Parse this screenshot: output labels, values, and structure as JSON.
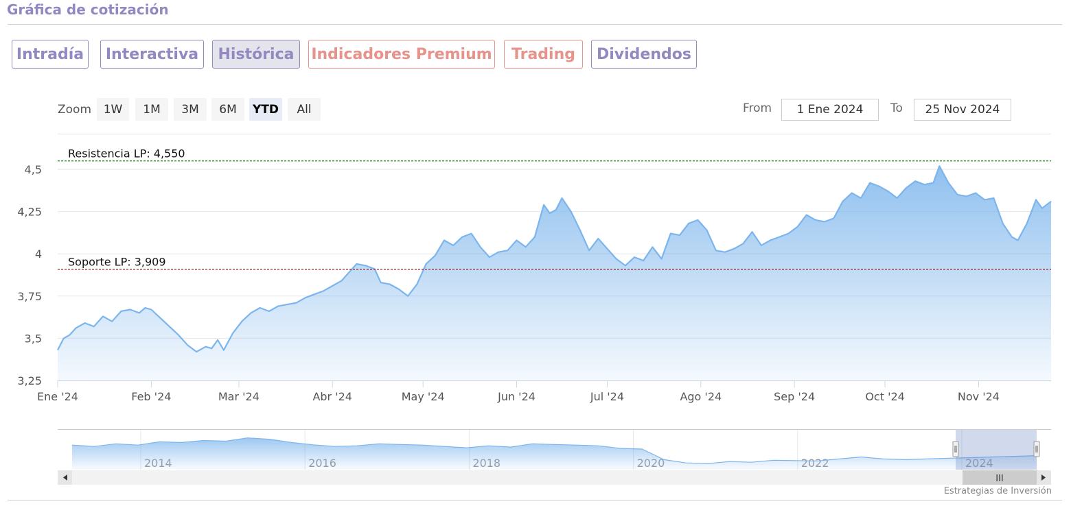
{
  "header": {
    "title": "Gráfica de cotización"
  },
  "tabs": [
    {
      "label": "Intradía",
      "kind": "normal"
    },
    {
      "label": "Interactiva",
      "kind": "normal"
    },
    {
      "label": "Histórica",
      "kind": "active"
    },
    {
      "label": "Indicadores Premium",
      "kind": "premium"
    },
    {
      "label": "Trading",
      "kind": "premium"
    },
    {
      "label": "Dividendos",
      "kind": "normal"
    }
  ],
  "range_selector": {
    "zoom_label": "Zoom",
    "buttons": [
      "1W",
      "1M",
      "3M",
      "6M",
      "YTD",
      "All"
    ],
    "selected": "YTD",
    "from_label": "From",
    "from_value": "1 Ene 2024",
    "to_label": "To",
    "to_value": "25 Nov 2024"
  },
  "colors": {
    "series": "#7cb5ec",
    "resistance": "#2e8b2e",
    "support": "#8b1a1a",
    "tab_normal": "#9488c0",
    "tab_premium": "#e5938b"
  },
  "chart_data": {
    "type": "area",
    "ylim": [
      3.25,
      4.55
    ],
    "y_ticks": [
      {
        "value": 3.25,
        "label": "3,25"
      },
      {
        "value": 3.5,
        "label": "3,5"
      },
      {
        "value": 3.75,
        "label": "3,75"
      },
      {
        "value": 4.0,
        "label": "4"
      },
      {
        "value": 4.25,
        "label": "4,25"
      },
      {
        "value": 4.5,
        "label": "4,5"
      }
    ],
    "x_ticks": [
      {
        "date": "2024-01-01",
        "label": "Ene '24"
      },
      {
        "date": "2024-02-01",
        "label": "Feb '24"
      },
      {
        "date": "2024-03-01",
        "label": "Mar '24"
      },
      {
        "date": "2024-04-01",
        "label": "Abr '24"
      },
      {
        "date": "2024-05-01",
        "label": "May '24"
      },
      {
        "date": "2024-06-01",
        "label": "Jun '24"
      },
      {
        "date": "2024-07-01",
        "label": "Jul '24"
      },
      {
        "date": "2024-08-01",
        "label": "Ago '24"
      },
      {
        "date": "2024-09-01",
        "label": "Sep '24"
      },
      {
        "date": "2024-10-01",
        "label": "Oct '24"
      },
      {
        "date": "2024-11-01",
        "label": "Nov '24"
      }
    ],
    "x_range": [
      "2024-01-01",
      "2024-11-25"
    ],
    "reference_lines": [
      {
        "label": "Resistencia LP: 4,550",
        "value": 4.55,
        "style": "dashed",
        "color_key": "resistance"
      },
      {
        "label": "Soporte LP: 3,909",
        "value": 3.909,
        "style": "dashed",
        "color_key": "support"
      }
    ],
    "series": [
      {
        "points": [
          [
            "2024-01-01",
            3.43
          ],
          [
            "2024-01-03",
            3.5
          ],
          [
            "2024-01-05",
            3.52
          ],
          [
            "2024-01-07",
            3.56
          ],
          [
            "2024-01-10",
            3.59
          ],
          [
            "2024-01-13",
            3.57
          ],
          [
            "2024-01-16",
            3.63
          ],
          [
            "2024-01-19",
            3.6
          ],
          [
            "2024-01-22",
            3.66
          ],
          [
            "2024-01-25",
            3.67
          ],
          [
            "2024-01-28",
            3.65
          ],
          [
            "2024-01-30",
            3.68
          ],
          [
            "2024-02-01",
            3.67
          ],
          [
            "2024-02-04",
            3.62
          ],
          [
            "2024-02-07",
            3.57
          ],
          [
            "2024-02-10",
            3.52
          ],
          [
            "2024-02-13",
            3.46
          ],
          [
            "2024-02-16",
            3.42
          ],
          [
            "2024-02-19",
            3.45
          ],
          [
            "2024-02-21",
            3.44
          ],
          [
            "2024-02-23",
            3.49
          ],
          [
            "2024-02-25",
            3.43
          ],
          [
            "2024-02-28",
            3.53
          ],
          [
            "2024-03-02",
            3.6
          ],
          [
            "2024-03-05",
            3.65
          ],
          [
            "2024-03-08",
            3.68
          ],
          [
            "2024-03-11",
            3.66
          ],
          [
            "2024-03-14",
            3.69
          ],
          [
            "2024-03-17",
            3.7
          ],
          [
            "2024-03-20",
            3.71
          ],
          [
            "2024-03-23",
            3.74
          ],
          [
            "2024-03-26",
            3.76
          ],
          [
            "2024-03-29",
            3.78
          ],
          [
            "2024-04-01",
            3.81
          ],
          [
            "2024-04-04",
            3.84
          ],
          [
            "2024-04-07",
            3.9
          ],
          [
            "2024-04-09",
            3.94
          ],
          [
            "2024-04-12",
            3.93
          ],
          [
            "2024-04-15",
            3.91
          ],
          [
            "2024-04-17",
            3.83
          ],
          [
            "2024-04-20",
            3.82
          ],
          [
            "2024-04-23",
            3.79
          ],
          [
            "2024-04-26",
            3.75
          ],
          [
            "2024-04-29",
            3.82
          ],
          [
            "2024-05-02",
            3.94
          ],
          [
            "2024-05-05",
            3.99
          ],
          [
            "2024-05-08",
            4.08
          ],
          [
            "2024-05-11",
            4.05
          ],
          [
            "2024-05-14",
            4.1
          ],
          [
            "2024-05-17",
            4.12
          ],
          [
            "2024-05-20",
            4.04
          ],
          [
            "2024-05-23",
            3.98
          ],
          [
            "2024-05-26",
            4.01
          ],
          [
            "2024-05-29",
            4.02
          ],
          [
            "2024-06-01",
            4.08
          ],
          [
            "2024-06-04",
            4.04
          ],
          [
            "2024-06-07",
            4.1
          ],
          [
            "2024-06-10",
            4.29
          ],
          [
            "2024-06-12",
            4.24
          ],
          [
            "2024-06-14",
            4.26
          ],
          [
            "2024-06-16",
            4.33
          ],
          [
            "2024-06-19",
            4.25
          ],
          [
            "2024-06-22",
            4.14
          ],
          [
            "2024-06-25",
            4.02
          ],
          [
            "2024-06-28",
            4.09
          ],
          [
            "2024-07-01",
            4.03
          ],
          [
            "2024-07-04",
            3.97
          ],
          [
            "2024-07-07",
            3.93
          ],
          [
            "2024-07-10",
            3.98
          ],
          [
            "2024-07-13",
            3.96
          ],
          [
            "2024-07-16",
            4.04
          ],
          [
            "2024-07-19",
            3.97
          ],
          [
            "2024-07-22",
            4.12
          ],
          [
            "2024-07-25",
            4.11
          ],
          [
            "2024-07-28",
            4.18
          ],
          [
            "2024-07-31",
            4.2
          ],
          [
            "2024-08-03",
            4.14
          ],
          [
            "2024-08-06",
            4.02
          ],
          [
            "2024-08-09",
            4.01
          ],
          [
            "2024-08-12",
            4.03
          ],
          [
            "2024-08-15",
            4.06
          ],
          [
            "2024-08-18",
            4.13
          ],
          [
            "2024-08-21",
            4.05
          ],
          [
            "2024-08-24",
            4.08
          ],
          [
            "2024-08-27",
            4.1
          ],
          [
            "2024-08-30",
            4.12
          ],
          [
            "2024-09-02",
            4.16
          ],
          [
            "2024-09-05",
            4.23
          ],
          [
            "2024-09-08",
            4.2
          ],
          [
            "2024-09-11",
            4.19
          ],
          [
            "2024-09-14",
            4.21
          ],
          [
            "2024-09-17",
            4.31
          ],
          [
            "2024-09-20",
            4.36
          ],
          [
            "2024-09-23",
            4.33
          ],
          [
            "2024-09-26",
            4.42
          ],
          [
            "2024-09-29",
            4.4
          ],
          [
            "2024-10-02",
            4.37
          ],
          [
            "2024-10-05",
            4.33
          ],
          [
            "2024-10-08",
            4.39
          ],
          [
            "2024-10-11",
            4.43
          ],
          [
            "2024-10-14",
            4.41
          ],
          [
            "2024-10-17",
            4.42
          ],
          [
            "2024-10-19",
            4.52
          ],
          [
            "2024-10-22",
            4.42
          ],
          [
            "2024-10-25",
            4.35
          ],
          [
            "2024-10-28",
            4.34
          ],
          [
            "2024-10-31",
            4.36
          ],
          [
            "2024-11-03",
            4.32
          ],
          [
            "2024-11-06",
            4.33
          ],
          [
            "2024-11-09",
            4.18
          ],
          [
            "2024-11-12",
            4.1
          ],
          [
            "2024-11-14",
            4.08
          ],
          [
            "2024-11-17",
            4.18
          ],
          [
            "2024-11-20",
            4.32
          ],
          [
            "2024-11-22",
            4.27
          ],
          [
            "2024-11-25",
            4.31
          ]
        ]
      }
    ]
  },
  "navigator": {
    "year_labels": [
      "2014",
      "2016",
      "2018",
      "2020",
      "2022",
      "2024"
    ],
    "levels": [
      0.62,
      0.58,
      0.66,
      0.62,
      0.72,
      0.7,
      0.76,
      0.74,
      0.84,
      0.8,
      0.7,
      0.63,
      0.58,
      0.6,
      0.66,
      0.64,
      0.62,
      0.58,
      0.54,
      0.6,
      0.56,
      0.66,
      0.64,
      0.62,
      0.6,
      0.52,
      0.5,
      0.18,
      0.08,
      0.06,
      0.12,
      0.1,
      0.16,
      0.15,
      0.14,
      0.2,
      0.26,
      0.2,
      0.18,
      0.2,
      0.22,
      0.24,
      0.26,
      0.28,
      0.3
    ],
    "window": [
      0.916,
      1.0
    ],
    "scroll_grip": "III"
  },
  "credit": "Estrategias de Inversión"
}
